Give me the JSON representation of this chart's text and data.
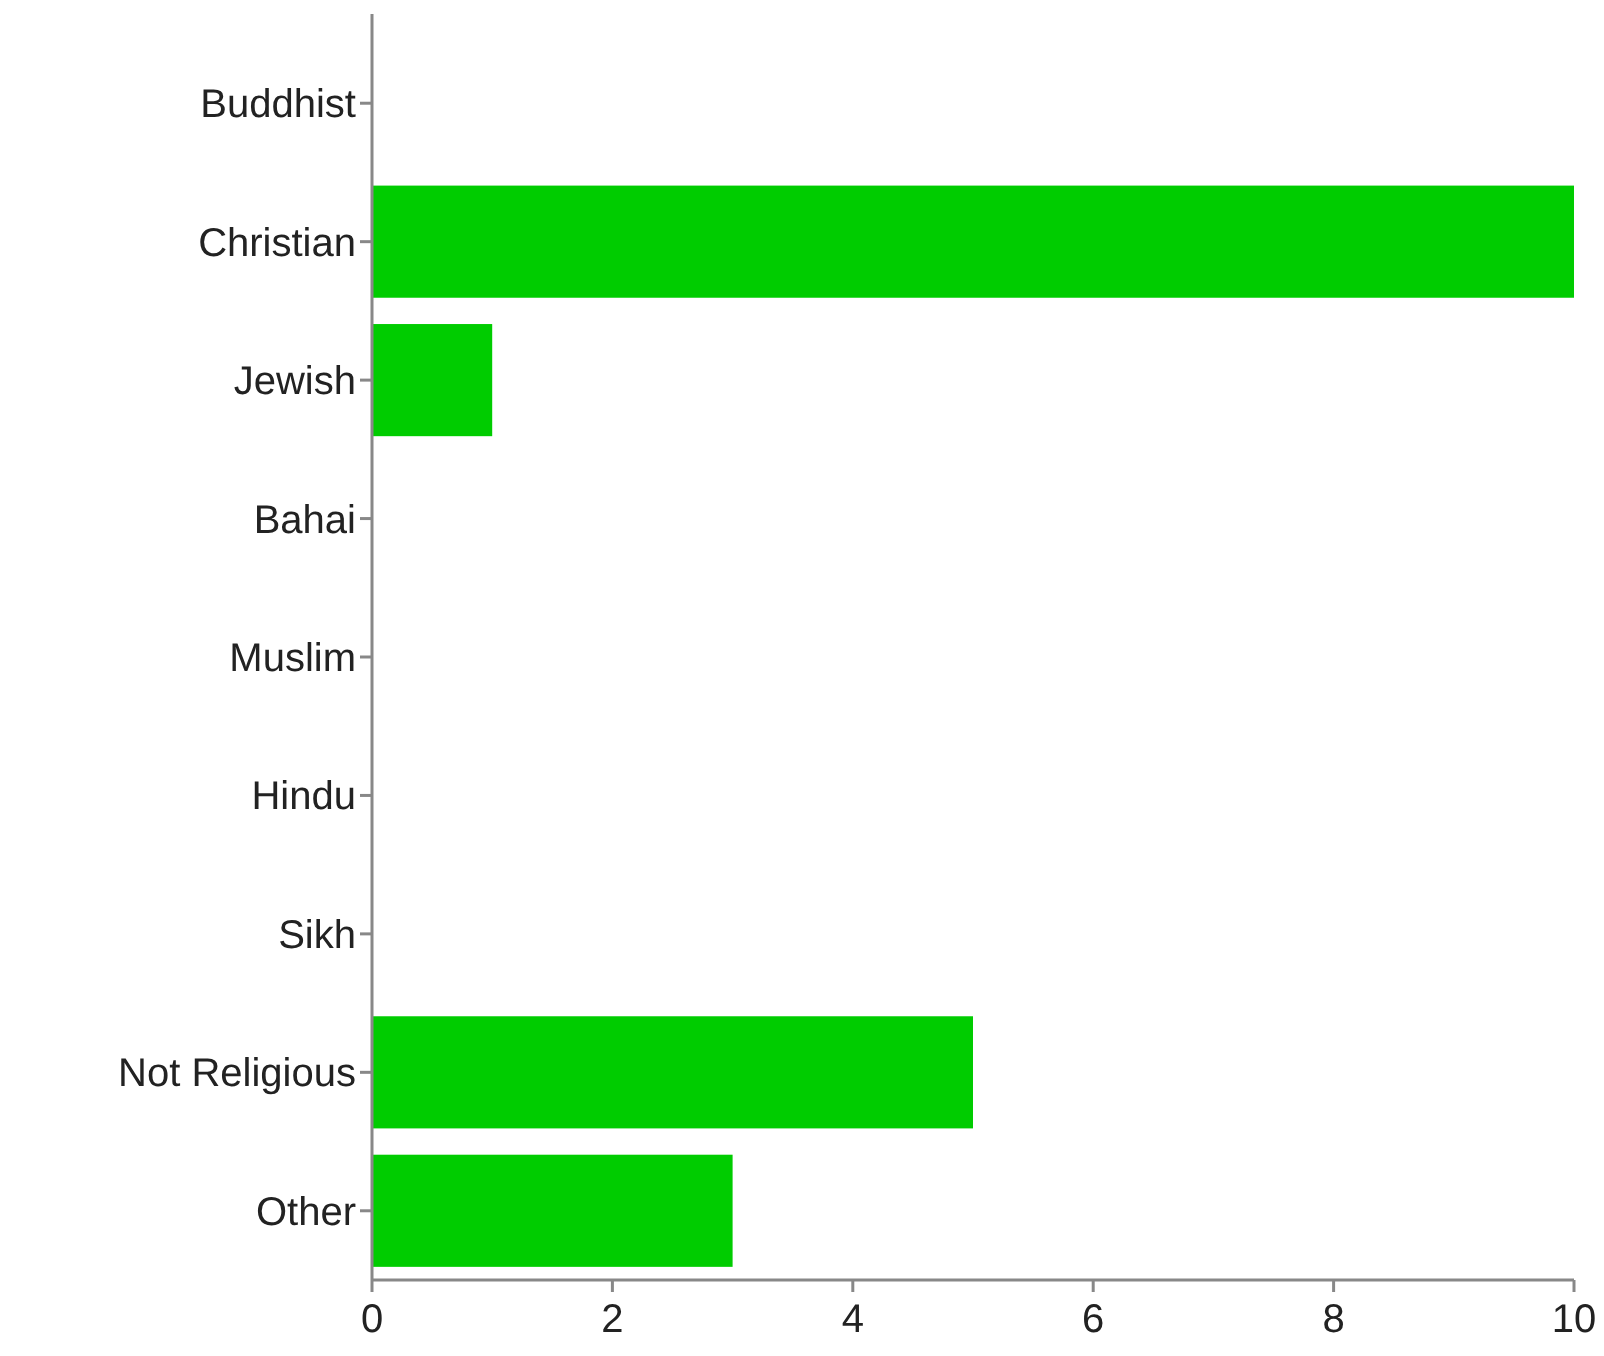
{
  "chart_data": {
    "type": "bar",
    "orientation": "horizontal",
    "categories": [
      "Buddhist",
      "Christian",
      "Jewish",
      "Bahai",
      "Muslim",
      "Hindu",
      "Sikh",
      "Not Religious",
      "Other"
    ],
    "values": [
      0,
      10,
      1,
      0,
      0,
      0,
      0,
      5,
      3
    ],
    "color": "#00cc00",
    "xlim": [
      0,
      10
    ],
    "xticks": [
      0,
      2,
      4,
      6,
      8,
      10
    ],
    "grid": false
  }
}
